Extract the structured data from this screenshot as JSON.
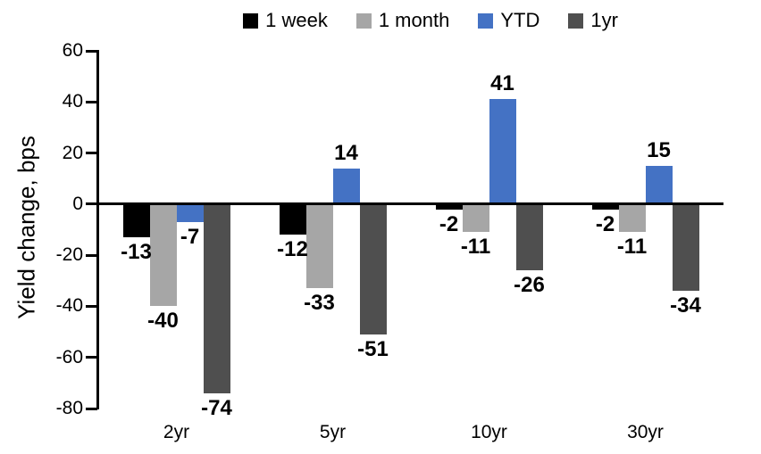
{
  "chart_data": {
    "type": "bar",
    "title": "",
    "ylabel": "Yield change, bps",
    "xlabel": "",
    "categories": [
      "2yr",
      "5yr",
      "10yr",
      "30yr"
    ],
    "series": [
      {
        "name": "1 week",
        "color": "#000000",
        "values": [
          -13,
          -12,
          -2,
          -2
        ]
      },
      {
        "name": "1 month",
        "color": "#A6A6A6",
        "values": [
          -40,
          -33,
          -11,
          -11
        ]
      },
      {
        "name": "YTD",
        "color": "#4472C4",
        "values": [
          -7,
          14,
          41,
          15
        ]
      },
      {
        "name": "1yr",
        "color": "#4F4F4F",
        "values": [
          -74,
          -51,
          -26,
          -34
        ]
      }
    ],
    "ylim": [
      -80,
      60
    ],
    "yticks": [
      60,
      40,
      20,
      0,
      -20,
      -40,
      -60,
      -80
    ],
    "grid": false,
    "legend_position": "top",
    "data_labels": true,
    "baseline_axis_value": 0
  }
}
